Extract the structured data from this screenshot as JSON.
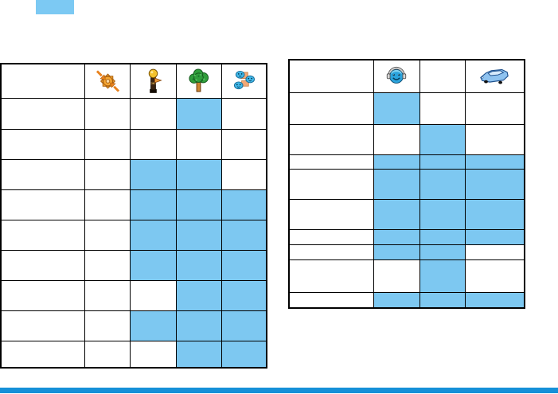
{
  "page": {
    "type": "manual-availability-tables-page",
    "corner_block_color": "#7cc9f3",
    "footer_bar_color": "#1690d8",
    "cell_fill_color": "#7dc8f1",
    "grid_border_color": "#000000"
  },
  "tables": [
    {
      "name": "left-availability-table",
      "header_icons": [
        "gear-arrows-icon",
        "bird-statue-icon",
        "tree-icon",
        "blue-group-icon"
      ],
      "rows": [
        [
          0,
          0,
          1,
          0
        ],
        [
          0,
          0,
          0,
          0
        ],
        [
          0,
          1,
          1,
          0
        ],
        [
          0,
          1,
          1,
          1
        ],
        [
          0,
          1,
          1,
          1
        ],
        [
          0,
          1,
          1,
          1
        ],
        [
          0,
          0,
          1,
          1
        ],
        [
          0,
          1,
          1,
          1
        ],
        [
          0,
          0,
          1,
          1
        ]
      ]
    },
    {
      "name": "right-availability-table",
      "header_icons": [
        "headset-face-icon",
        null,
        "car-icon"
      ],
      "rows": [
        [
          1,
          0,
          0
        ],
        [
          0,
          1,
          0
        ],
        [
          1,
          1,
          1
        ],
        [
          1,
          1,
          1
        ],
        [
          1,
          1,
          1
        ],
        [
          1,
          1,
          1
        ],
        [
          1,
          1,
          0
        ],
        [
          0,
          1,
          0
        ],
        [
          1,
          1,
          1
        ]
      ]
    }
  ]
}
